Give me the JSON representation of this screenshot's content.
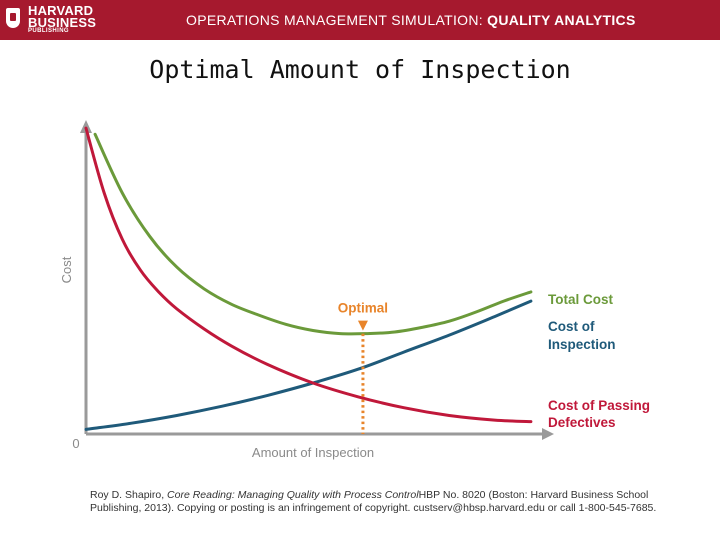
{
  "header": {
    "logo_line1": "HARVARD",
    "logo_line2": "BUSINESS",
    "logo_line3": "PUBLISHING",
    "title_prefix": "OPERATIONS MANAGEMENT SIMULATION: ",
    "title_bold": "QUALITY ANALYTICS",
    "background_color": "#a6192e"
  },
  "slide": {
    "title": "Optimal Amount of Inspection"
  },
  "citation": {
    "author": "Roy D. Shapiro, ",
    "work": "Core Reading: Managing Quality with Process Control",
    "rest": "HBP No. 8020 (Boston: Harvard Business School Publishing, 2013). Copying or posting is an infringement of copyright. custserv@hbsp.harvard.edu or call 1-800-545-7685."
  },
  "chart_data": {
    "type": "line",
    "title": "",
    "xlabel": "Amount of Inspection",
    "ylabel": "Cost",
    "origin_label": "0",
    "xlim": [
      0,
      100
    ],
    "ylim": [
      0,
      100
    ],
    "grid": false,
    "series": [
      {
        "name": "Total Cost",
        "color": "#6b9a3a",
        "x": [
          2,
          8,
          14,
          20,
          26,
          32,
          38,
          44,
          50,
          56,
          62,
          68,
          74,
          80,
          86,
          92,
          98
        ],
        "y": [
          97,
          78,
          64,
          54,
          47,
          42,
          38.5,
          35.5,
          33.5,
          32.5,
          32.5,
          33,
          34.5,
          36.5,
          39.5,
          43,
          46
        ]
      },
      {
        "name": "Cost of Inspection",
        "color": "#1f5a7a",
        "x": [
          0,
          10,
          20,
          30,
          40,
          50,
          60,
          70,
          80,
          90,
          98
        ],
        "y": [
          1.5,
          3.5,
          6,
          9,
          12.5,
          16.5,
          21,
          26.5,
          32,
          38,
          43
        ]
      },
      {
        "name": "Cost of Passing Defectives",
        "color": "#c0183a",
        "x": [
          0,
          4,
          8,
          12,
          16,
          20,
          26,
          32,
          40,
          50,
          60,
          70,
          80,
          90,
          98
        ],
        "y": [
          99,
          78,
          63,
          53,
          46,
          40.5,
          34,
          28.5,
          22.5,
          16.5,
          12,
          8.5,
          6,
          4.5,
          4
        ]
      }
    ],
    "annotations": [
      {
        "text": "Optimal",
        "x": 61,
        "y": 32.5,
        "color": "#e8842a"
      }
    ]
  }
}
